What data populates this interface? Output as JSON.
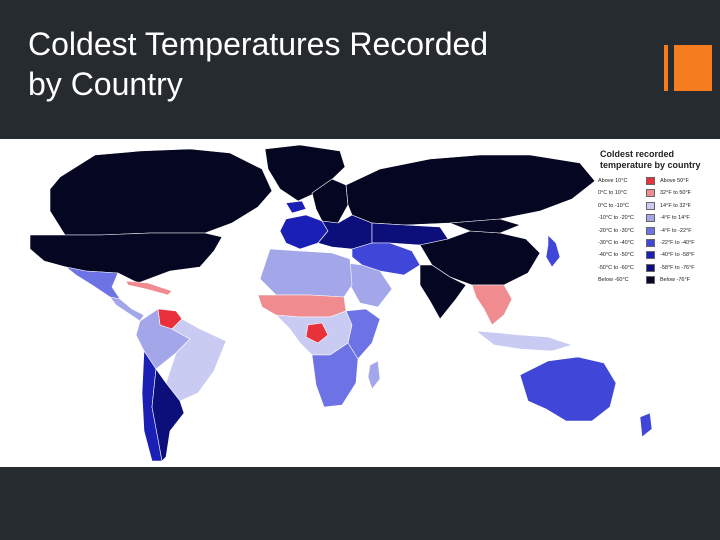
{
  "slide": {
    "title_lines": [
      "Coldest Temperatures Recorded",
      "by Country"
    ],
    "accent_color": "#f57c1f",
    "background": "#262b30"
  },
  "legend": {
    "title_lines": [
      "Coldest recorded",
      "temperature by country"
    ],
    "items": [
      {
        "celsius": "Above 10°C",
        "fahrenheit": "Above 50°F",
        "color": "#e8313b"
      },
      {
        "celsius": "0°C to 10°C",
        "fahrenheit": "32°F to 50°F",
        "color": "#f08c8f"
      },
      {
        "celsius": "0°C to -10°C",
        "fahrenheit": "14°F to 32°F",
        "color": "#c9cbf2"
      },
      {
        "celsius": "-10°C to -20°C",
        "fahrenheit": "-4°F to 14°F",
        "color": "#a3a7ea"
      },
      {
        "celsius": "-20°C to -30°C",
        "fahrenheit": "-4°F to -22°F",
        "color": "#6d73e4"
      },
      {
        "celsius": "-30°C to -40°C",
        "fahrenheit": "-22°F to -40°F",
        "color": "#3f46d8"
      },
      {
        "celsius": "-40°C to -50°C",
        "fahrenheit": "-40°F to -58°F",
        "color": "#1a1fb6"
      },
      {
        "celsius": "-50°C to -60°C",
        "fahrenheit": "-58°F to -76°F",
        "color": "#0c0f7a"
      },
      {
        "celsius": "Below -60°C",
        "fahrenheit": "Below -76°F",
        "color": "#040622"
      }
    ]
  },
  "regions": [
    {
      "name": "Greenland",
      "color": "#040622"
    },
    {
      "name": "Canada",
      "color": "#040622"
    },
    {
      "name": "United States",
      "color": "#040622"
    },
    {
      "name": "Mexico",
      "color": "#6d73e4"
    },
    {
      "name": "Central America",
      "color": "#a3a7ea"
    },
    {
      "name": "Caribbean",
      "color": "#f08c8f"
    },
    {
      "name": "Guiana Shield",
      "color": "#e8313b"
    },
    {
      "name": "South America north",
      "color": "#a3a7ea"
    },
    {
      "name": "Brazil",
      "color": "#c9cbf2"
    },
    {
      "name": "Chile",
      "color": "#1a1fb6"
    },
    {
      "name": "Argentina",
      "color": "#0c0f7a"
    },
    {
      "name": "Iceland",
      "color": "#1a1fb6"
    },
    {
      "name": "Scandinavia",
      "color": "#040622"
    },
    {
      "name": "Western Europe",
      "color": "#1a1fb6"
    },
    {
      "name": "Eastern Europe",
      "color": "#0c0f7a"
    },
    {
      "name": "Russia",
      "color": "#040622"
    },
    {
      "name": "Kazakhstan",
      "color": "#0c0f7a"
    },
    {
      "name": "China",
      "color": "#040622"
    },
    {
      "name": "Mongolia",
      "color": "#040622"
    },
    {
      "name": "Japan",
      "color": "#3f46d8"
    },
    {
      "name": "Middle East",
      "color": "#3f46d8"
    },
    {
      "name": "Arabia",
      "color": "#a3a7ea"
    },
    {
      "name": "North Africa",
      "color": "#a3a7ea"
    },
    {
      "name": "Sahel",
      "color": "#f08c8f"
    },
    {
      "name": "Central Africa",
      "color": "#c9cbf2"
    },
    {
      "name": "Congo",
      "color": "#e8313b"
    },
    {
      "name": "East Africa",
      "color": "#6d73e4"
    },
    {
      "name": "Southern Africa",
      "color": "#6d73e4"
    },
    {
      "name": "Madagascar",
      "color": "#a3a7ea"
    },
    {
      "name": "India",
      "color": "#040622"
    },
    {
      "name": "Southeast Asia",
      "color": "#f08c8f"
    },
    {
      "name": "Indonesia",
      "color": "#c9cbf2"
    },
    {
      "name": "Australia",
      "color": "#3f46d8"
    },
    {
      "name": "New Zealand",
      "color": "#3f46d8"
    }
  ]
}
